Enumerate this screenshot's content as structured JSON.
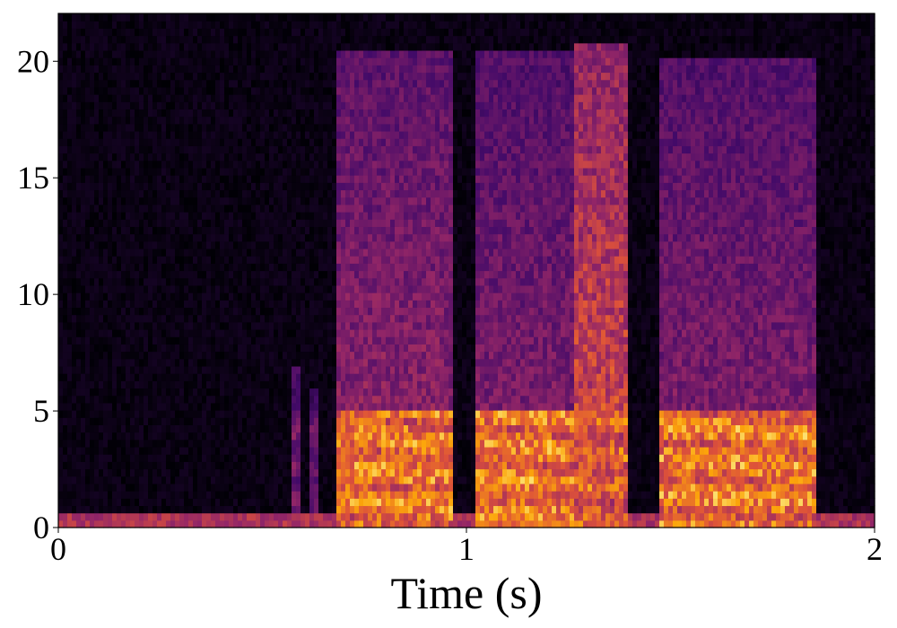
{
  "chart_data": {
    "type": "heatmap",
    "title": "",
    "xlabel": "Time (s)",
    "ylabel": "",
    "xlim": [
      0,
      2
    ],
    "ylim": [
      0,
      22.05
    ],
    "xticks": [
      "0",
      "1",
      "2"
    ],
    "xtick_values": [
      0,
      1,
      2
    ],
    "yticks": [
      "0",
      "5",
      "10",
      "15",
      "20"
    ],
    "ytick_values": [
      0,
      5,
      10,
      15,
      20
    ],
    "colormap": "inferno",
    "colormap_stops": [
      "#000004",
      "#420a68",
      "#932667",
      "#dd513a",
      "#fca50a",
      "#fcffa4"
    ],
    "background_level": 0.03,
    "low_band": {
      "f_max": 0.3,
      "level": 0.55
    },
    "segments": [
      {
        "t0": 0.57,
        "t1": 0.59,
        "f_max": 7,
        "low_level": 0.4,
        "high_level": 0.25
      },
      {
        "t0": 0.62,
        "t1": 0.64,
        "f_max": 6,
        "low_level": 0.35,
        "high_level": 0.2
      },
      {
        "t0": 0.68,
        "t1": 0.97,
        "f_max": 20.5,
        "low_level": 0.85,
        "high_level": 0.42
      },
      {
        "t0": 1.02,
        "t1": 1.26,
        "f_max": 20.5,
        "low_level": 0.85,
        "high_level": 0.38
      },
      {
        "t0": 1.26,
        "t1": 1.4,
        "f_max": 20.8,
        "low_level": 0.75,
        "high_level": 0.62
      },
      {
        "t0": 1.47,
        "t1": 1.86,
        "f_max": 20.2,
        "low_level": 0.85,
        "high_level": 0.38
      }
    ]
  }
}
